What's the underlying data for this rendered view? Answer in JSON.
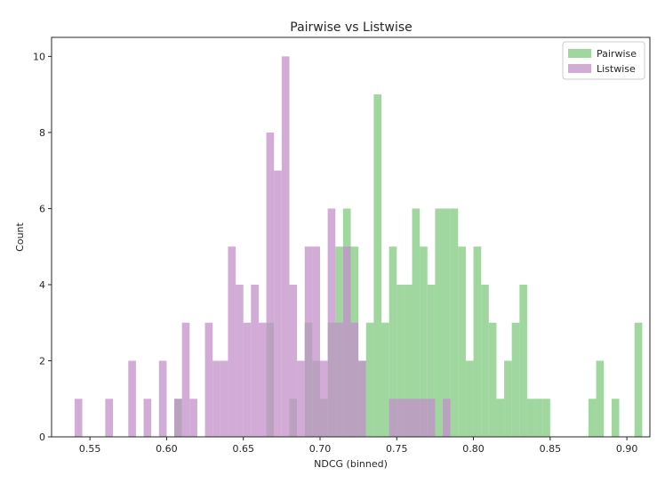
{
  "chart_data": {
    "type": "histogram",
    "title": "Pairwise vs Listwise",
    "xlabel": "NDCG (binned)",
    "ylabel": "Count",
    "xlim": [
      0.525,
      0.915
    ],
    "ylim": [
      0,
      10.5
    ],
    "x_ticks": [
      0.55,
      0.6,
      0.65,
      0.7,
      0.75,
      0.8,
      0.85,
      0.9
    ],
    "x_tick_labels": [
      "0.55",
      "0.60",
      "0.65",
      "0.70",
      "0.75",
      "0.80",
      "0.85",
      "0.90"
    ],
    "y_ticks": [
      0,
      2,
      4,
      6,
      8,
      10
    ],
    "y_tick_labels": [
      "0",
      "2",
      "4",
      "6",
      "8",
      "10"
    ],
    "grid": false,
    "legend_position": "top-right",
    "bin_width": 0.005,
    "series": [
      {
        "name": "Pairwise",
        "color": "#7fc97f",
        "opacity": 0.75,
        "bins": [
          [
            0.605,
            1
          ],
          [
            0.665,
            3
          ],
          [
            0.68,
            1
          ],
          [
            0.69,
            3
          ],
          [
            0.695,
            2
          ],
          [
            0.7,
            1
          ],
          [
            0.705,
            3
          ],
          [
            0.71,
            5
          ],
          [
            0.715,
            6
          ],
          [
            0.72,
            5
          ],
          [
            0.725,
            2
          ],
          [
            0.73,
            3
          ],
          [
            0.735,
            9
          ],
          [
            0.74,
            3
          ],
          [
            0.745,
            5
          ],
          [
            0.75,
            4
          ],
          [
            0.755,
            4
          ],
          [
            0.76,
            6
          ],
          [
            0.765,
            5
          ],
          [
            0.77,
            4
          ],
          [
            0.775,
            6
          ],
          [
            0.78,
            6
          ],
          [
            0.785,
            6
          ],
          [
            0.79,
            5
          ],
          [
            0.795,
            2
          ],
          [
            0.8,
            5
          ],
          [
            0.805,
            4
          ],
          [
            0.81,
            3
          ],
          [
            0.815,
            1
          ],
          [
            0.82,
            2
          ],
          [
            0.825,
            3
          ],
          [
            0.83,
            4
          ],
          [
            0.835,
            1
          ],
          [
            0.84,
            1
          ],
          [
            0.845,
            1
          ],
          [
            0.875,
            1
          ],
          [
            0.88,
            2
          ],
          [
            0.89,
            1
          ],
          [
            0.905,
            3
          ]
        ]
      },
      {
        "name": "Listwise",
        "color": "#c38fc9",
        "opacity": 0.75,
        "bins": [
          [
            0.54,
            1
          ],
          [
            0.56,
            1
          ],
          [
            0.575,
            2
          ],
          [
            0.585,
            1
          ],
          [
            0.595,
            2
          ],
          [
            0.605,
            1
          ],
          [
            0.61,
            3
          ],
          [
            0.615,
            1
          ],
          [
            0.625,
            3
          ],
          [
            0.63,
            2
          ],
          [
            0.635,
            2
          ],
          [
            0.64,
            5
          ],
          [
            0.645,
            4
          ],
          [
            0.65,
            3
          ],
          [
            0.655,
            4
          ],
          [
            0.66,
            3
          ],
          [
            0.665,
            8
          ],
          [
            0.67,
            7
          ],
          [
            0.675,
            10
          ],
          [
            0.68,
            4
          ],
          [
            0.685,
            2
          ],
          [
            0.69,
            5
          ],
          [
            0.695,
            5
          ],
          [
            0.7,
            2
          ],
          [
            0.705,
            6
          ],
          [
            0.71,
            3
          ],
          [
            0.715,
            5
          ],
          [
            0.72,
            3
          ],
          [
            0.725,
            2
          ],
          [
            0.745,
            1
          ],
          [
            0.75,
            1
          ],
          [
            0.755,
            1
          ],
          [
            0.76,
            1
          ],
          [
            0.765,
            1
          ],
          [
            0.77,
            1
          ],
          [
            0.78,
            1
          ]
        ]
      }
    ]
  }
}
